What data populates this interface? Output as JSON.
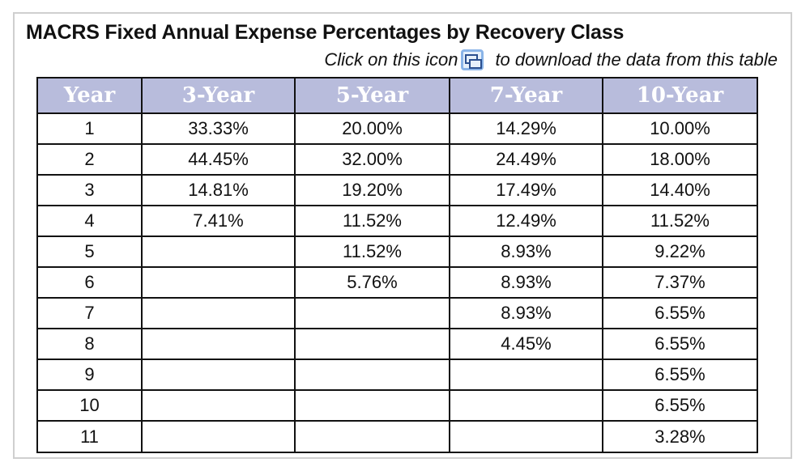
{
  "title": "MACRS Fixed Annual Expense Percentages by Recovery Class",
  "download": {
    "before_icon": "Click on this icon",
    "after_icon": "to download the data from this table",
    "icon": "download-data-icon"
  },
  "table": {
    "headers": [
      "Year",
      "3-Year",
      "5-Year",
      "7-Year",
      "10-Year"
    ],
    "rows": [
      [
        "1",
        "33.33%",
        "20.00%",
        "14.29%",
        "10.00%"
      ],
      [
        "2",
        "44.45%",
        "32.00%",
        "24.49%",
        "18.00%"
      ],
      [
        "3",
        "14.81%",
        "19.20%",
        "17.49%",
        "14.40%"
      ],
      [
        "4",
        "7.41%",
        "11.52%",
        "12.49%",
        "11.52%"
      ],
      [
        "5",
        "",
        "11.52%",
        "8.93%",
        "9.22%"
      ],
      [
        "6",
        "",
        "5.76%",
        "8.93%",
        "7.37%"
      ],
      [
        "7",
        "",
        "",
        "8.93%",
        "6.55%"
      ],
      [
        "8",
        "",
        "",
        "4.45%",
        "6.55%"
      ],
      [
        "9",
        "",
        "",
        "",
        "6.55%"
      ],
      [
        "10",
        "",
        "",
        "",
        "6.55%"
      ],
      [
        "11",
        "",
        "",
        "",
        "3.28%"
      ]
    ]
  }
}
